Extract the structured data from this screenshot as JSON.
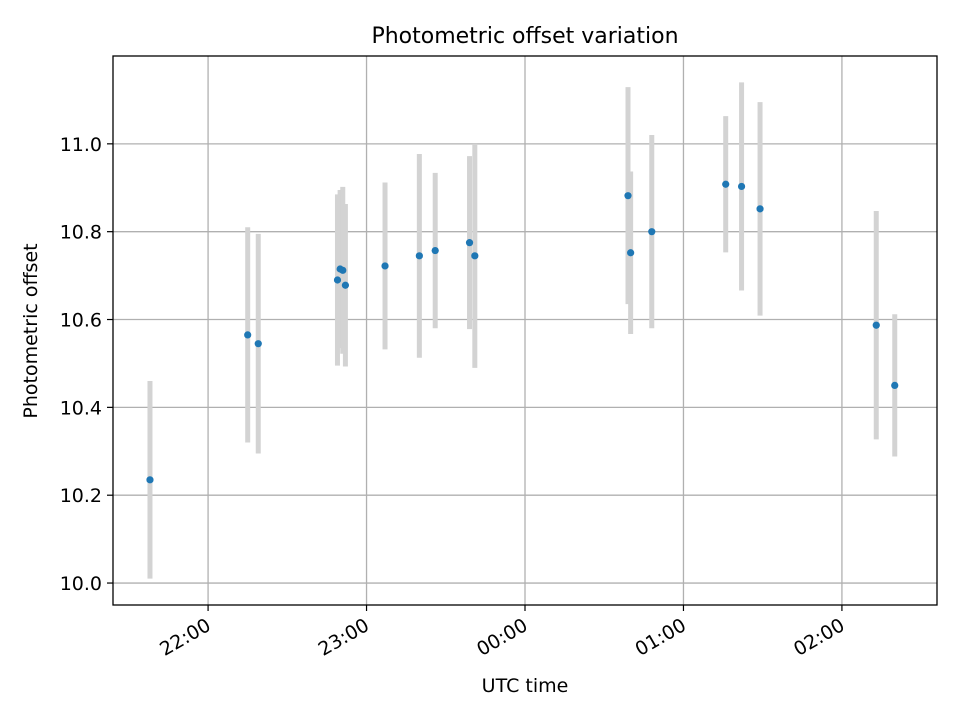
{
  "chart_data": {
    "type": "scatter",
    "title": "Photometric offset variation",
    "xlabel": "UTC time",
    "ylabel": "Photometric offset",
    "x_ticks": [
      "22:00",
      "23:00",
      "00:00",
      "01:00",
      "02:00"
    ],
    "y_ticks": [
      "10.0",
      "10.2",
      "10.4",
      "10.6",
      "10.8",
      "11.0"
    ],
    "xlim": [
      "21:24",
      "02:36"
    ],
    "ylim": [
      9.95,
      11.2
    ],
    "grid": true,
    "colors": {
      "points": "#1f77b4",
      "errorbars": "#d3d3d3",
      "grid": "#b0b0b0"
    },
    "series": [
      {
        "x": [
          "21:38",
          "22:15",
          "22:19",
          "22:49",
          "22:50",
          "22:51",
          "22:52",
          "23:07",
          "23:20",
          "23:26",
          "23:39",
          "23:41",
          "00:39",
          "00:40",
          "00:48",
          "01:16",
          "01:22",
          "01:29",
          "02:13",
          "02:20"
        ],
        "y": [
          10.235,
          10.565,
          10.545,
          10.69,
          10.715,
          10.712,
          10.678,
          10.722,
          10.745,
          10.757,
          10.775,
          10.745,
          10.882,
          10.752,
          10.8,
          10.908,
          10.903,
          10.852,
          10.587,
          10.45
        ],
        "yerr": [
          0.225,
          0.245,
          0.25,
          0.195,
          0.18,
          0.19,
          0.185,
          0.19,
          0.232,
          0.177,
          0.197,
          0.255,
          0.247,
          0.185,
          0.22,
          0.155,
          0.237,
          0.243,
          0.26,
          0.162
        ]
      }
    ]
  }
}
